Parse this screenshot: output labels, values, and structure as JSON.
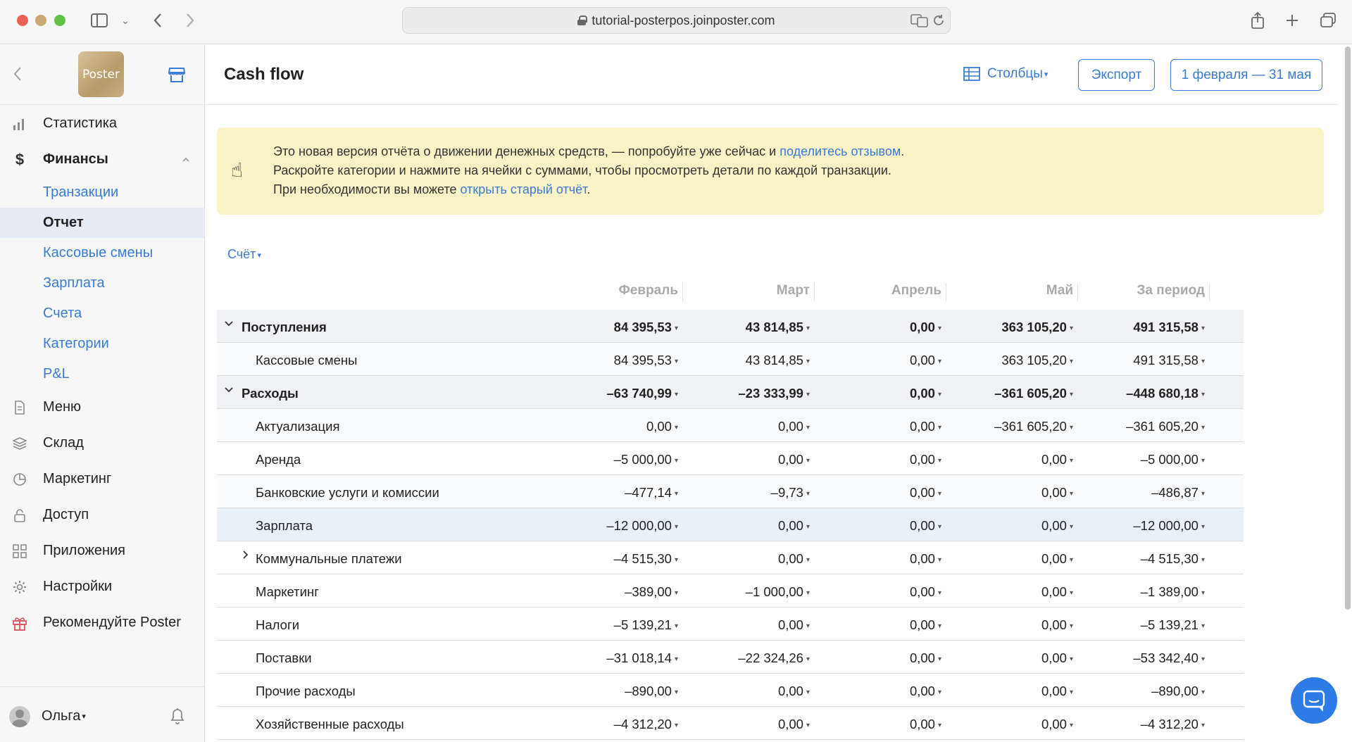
{
  "browser": {
    "url": "tutorial-posterpos.joinposter.com"
  },
  "sidebar": {
    "logo_text": "Poster",
    "nav": [
      {
        "label": "Статистика"
      },
      {
        "label": "Финансы"
      }
    ],
    "finance_sub": [
      {
        "label": "Транзакции"
      },
      {
        "label": "Отчет"
      },
      {
        "label": "Кассовые смены"
      },
      {
        "label": "Зарплата"
      },
      {
        "label": "Счета"
      },
      {
        "label": "Категории"
      },
      {
        "label": "P&L"
      }
    ],
    "nav_bottom": [
      {
        "label": "Меню"
      },
      {
        "label": "Склад"
      },
      {
        "label": "Маркетинг"
      },
      {
        "label": "Доступ"
      },
      {
        "label": "Приложения"
      },
      {
        "label": "Настройки"
      },
      {
        "label": "Рекомендуйте Poster"
      }
    ],
    "user": "Ольга"
  },
  "header": {
    "title": "Cash flow",
    "columns_label": "Столбцы",
    "export_label": "Экспорт",
    "date_range": "1 февраля — 31 мая"
  },
  "notice": {
    "line1_a": "Это новая версия отчёта о движении денежных средств, — попробуйте уже сейчас и ",
    "line1_link": "поделитесь отзывом",
    "line1_b": ".",
    "line2": "Раскройте категории и нажмите на ячейки с суммами, чтобы просмотреть детали по каждой транзакции.",
    "line3_a": "При необходимости вы можете ",
    "line3_link": "открыть старый отчёт",
    "line3_b": "."
  },
  "filter": {
    "account_label": "Счёт"
  },
  "table": {
    "columns": [
      "Февраль",
      "Март",
      "Апрель",
      "Май",
      "За период"
    ],
    "rows": [
      {
        "label": "Поступления",
        "type": "group",
        "values": [
          "84 395,53",
          "43 814,85",
          "0,00",
          "363 105,20",
          "491 315,58"
        ]
      },
      {
        "label": "Кассовые смены",
        "type": "sub",
        "values": [
          "84 395,53",
          "43 814,85",
          "0,00",
          "363 105,20",
          "491 315,58"
        ]
      },
      {
        "label": "Расходы",
        "type": "group",
        "values": [
          "–63 740,99",
          "–23 333,99",
          "0,00",
          "–361 605,20",
          "–448 680,18"
        ]
      },
      {
        "label": "Актуализация",
        "type": "sub",
        "values": [
          "0,00",
          "0,00",
          "0,00",
          "–361 605,20",
          "–361 605,20"
        ]
      },
      {
        "label": "Аренда",
        "type": "plain",
        "values": [
          "–5 000,00",
          "0,00",
          "0,00",
          "0,00",
          "–5 000,00"
        ]
      },
      {
        "label": "Банковские услуги и комиссии",
        "type": "sub",
        "values": [
          "–477,14",
          "–9,73",
          "0,00",
          "0,00",
          "–486,87"
        ]
      },
      {
        "label": "Зарплата",
        "type": "highlight",
        "values": [
          "–12 000,00",
          "0,00",
          "0,00",
          "0,00",
          "–12 000,00"
        ]
      },
      {
        "label": "Коммунальные платежи",
        "type": "expandable",
        "values": [
          "–4 515,30",
          "0,00",
          "0,00",
          "0,00",
          "–4 515,30"
        ]
      },
      {
        "label": "Маркетинг",
        "type": "plain",
        "values": [
          "–389,00",
          "–1 000,00",
          "0,00",
          "0,00",
          "–1 389,00"
        ]
      },
      {
        "label": "Налоги",
        "type": "plain",
        "values": [
          "–5 139,21",
          "0,00",
          "0,00",
          "0,00",
          "–5 139,21"
        ]
      },
      {
        "label": "Поставки",
        "type": "plain",
        "values": [
          "–31 018,14",
          "–22 324,26",
          "0,00",
          "0,00",
          "–53 342,40"
        ]
      },
      {
        "label": "Прочие расходы",
        "type": "plain",
        "values": [
          "–890,00",
          "0,00",
          "0,00",
          "0,00",
          "–890,00"
        ]
      },
      {
        "label": "Хозяйственные расходы",
        "type": "plain",
        "values": [
          "–4 312,20",
          "0,00",
          "0,00",
          "0,00",
          "–4 312,20"
        ]
      }
    ]
  },
  "colors": {
    "accent": "#3a7bd5",
    "notice_bg": "#fbf3c8",
    "group_row_bg": "#f0f1f4",
    "highlight_row_bg": "#e8f0fa"
  }
}
